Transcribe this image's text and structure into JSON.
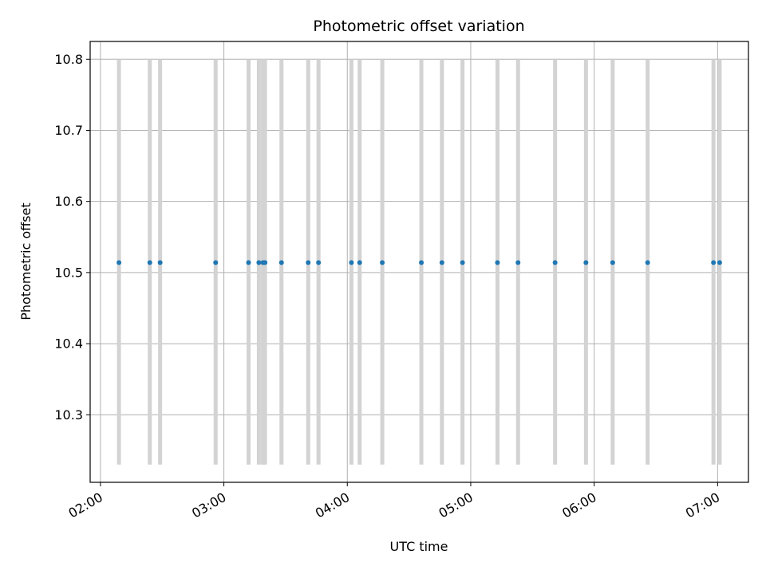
{
  "chart_data": {
    "type": "scatter",
    "title": "Photometric offset variation",
    "xlabel": "UTC time",
    "ylabel": "Photometric offset",
    "xlim": [
      "01:55",
      "07:15"
    ],
    "ylim": [
      10.205,
      10.825
    ],
    "x_ticks": [
      "02:00",
      "03:00",
      "04:00",
      "05:00",
      "06:00",
      "07:00"
    ],
    "y_ticks": [
      "10.3",
      "10.4",
      "10.5",
      "10.6",
      "10.7",
      "10.8"
    ],
    "grid": true,
    "error_bar_range": [
      10.23,
      10.8
    ],
    "colors": {
      "points": "#1f77b4",
      "error_bars": "#d3d3d3",
      "grid": "#b0b0b0"
    },
    "x": [
      "02:09",
      "02:24",
      "02:29",
      "02:56",
      "03:12",
      "03:17",
      "03:19",
      "03:20",
      "03:28",
      "03:41",
      "03:46",
      "04:02",
      "04:06",
      "04:17",
      "04:36",
      "04:46",
      "04:56",
      "05:13",
      "05:23",
      "05:41",
      "05:56",
      "06:09",
      "06:26",
      "06:58",
      "07:01"
    ],
    "y": [
      10.514,
      10.514,
      10.514,
      10.514,
      10.514,
      10.514,
      10.514,
      10.514,
      10.514,
      10.514,
      10.514,
      10.514,
      10.514,
      10.514,
      10.514,
      10.514,
      10.514,
      10.514,
      10.514,
      10.514,
      10.514,
      10.514,
      10.514,
      10.514,
      10.514
    ]
  }
}
